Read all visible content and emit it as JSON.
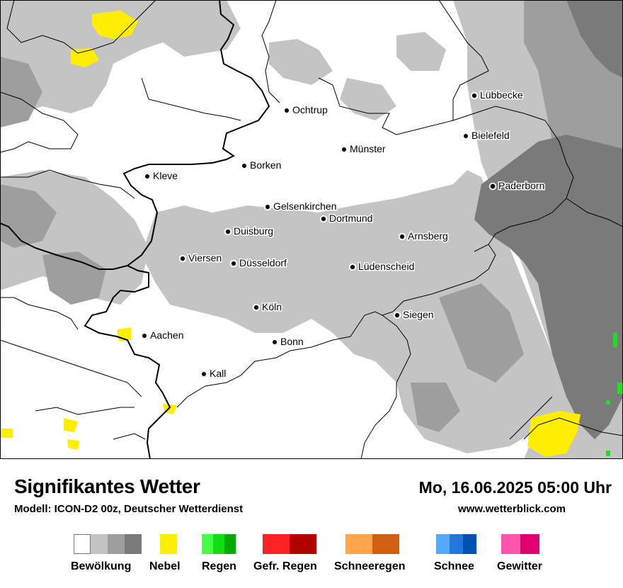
{
  "title": "Signifikantes Wetter",
  "model": "Modell: ICON-D2 00z, Deutscher Wetterdienst",
  "datetime": "Mo, 16.06.2025 05:00 Uhr",
  "website": "www.wetterblick.com",
  "cities": [
    {
      "name": "Ochtrup"
    },
    {
      "name": "Lübbecke"
    },
    {
      "name": "Bielefeld"
    },
    {
      "name": "Münster"
    },
    {
      "name": "Borken"
    },
    {
      "name": "Kleve"
    },
    {
      "name": "Paderborn"
    },
    {
      "name": "Gelsenkirchen"
    },
    {
      "name": "Dortmund"
    },
    {
      "name": "Duisburg"
    },
    {
      "name": "Arnsberg"
    },
    {
      "name": "Viersen"
    },
    {
      "name": "Düsseldorf"
    },
    {
      "name": "Lüdenscheid"
    },
    {
      "name": "Köln"
    },
    {
      "name": "Siegen"
    },
    {
      "name": "Aachen"
    },
    {
      "name": "Bonn"
    },
    {
      "name": "Kall"
    }
  ],
  "legend": [
    {
      "label": "Bewölkung",
      "colors": [
        "#ffffff",
        "#c4c4c4",
        "#9e9e9e",
        "#7a7a7a"
      ]
    },
    {
      "label": "Nebel",
      "colors": [
        "#ffee00"
      ]
    },
    {
      "label": "Regen",
      "colors": [
        "#44ff44",
        "#11dd11",
        "#00aa00"
      ]
    },
    {
      "label": "Gefr. Regen",
      "colors": [
        "#ff2222",
        "#b00000"
      ]
    },
    {
      "label": "Schneeregen",
      "colors": [
        "#ffa64d",
        "#d06010"
      ]
    },
    {
      "label": "Schnee",
      "colors": [
        "#55aaff",
        "#2277dd",
        "#0050b0"
      ]
    },
    {
      "label": "Gewitter",
      "colors": [
        "#ff55aa",
        "#e00070"
      ]
    }
  ],
  "colors": {
    "cloud_light": "#c4c4c4",
    "cloud_mid": "#9e9e9e",
    "cloud_dark": "#7a7a7a",
    "fog": "#ffee00",
    "rain": "#22dd22"
  }
}
